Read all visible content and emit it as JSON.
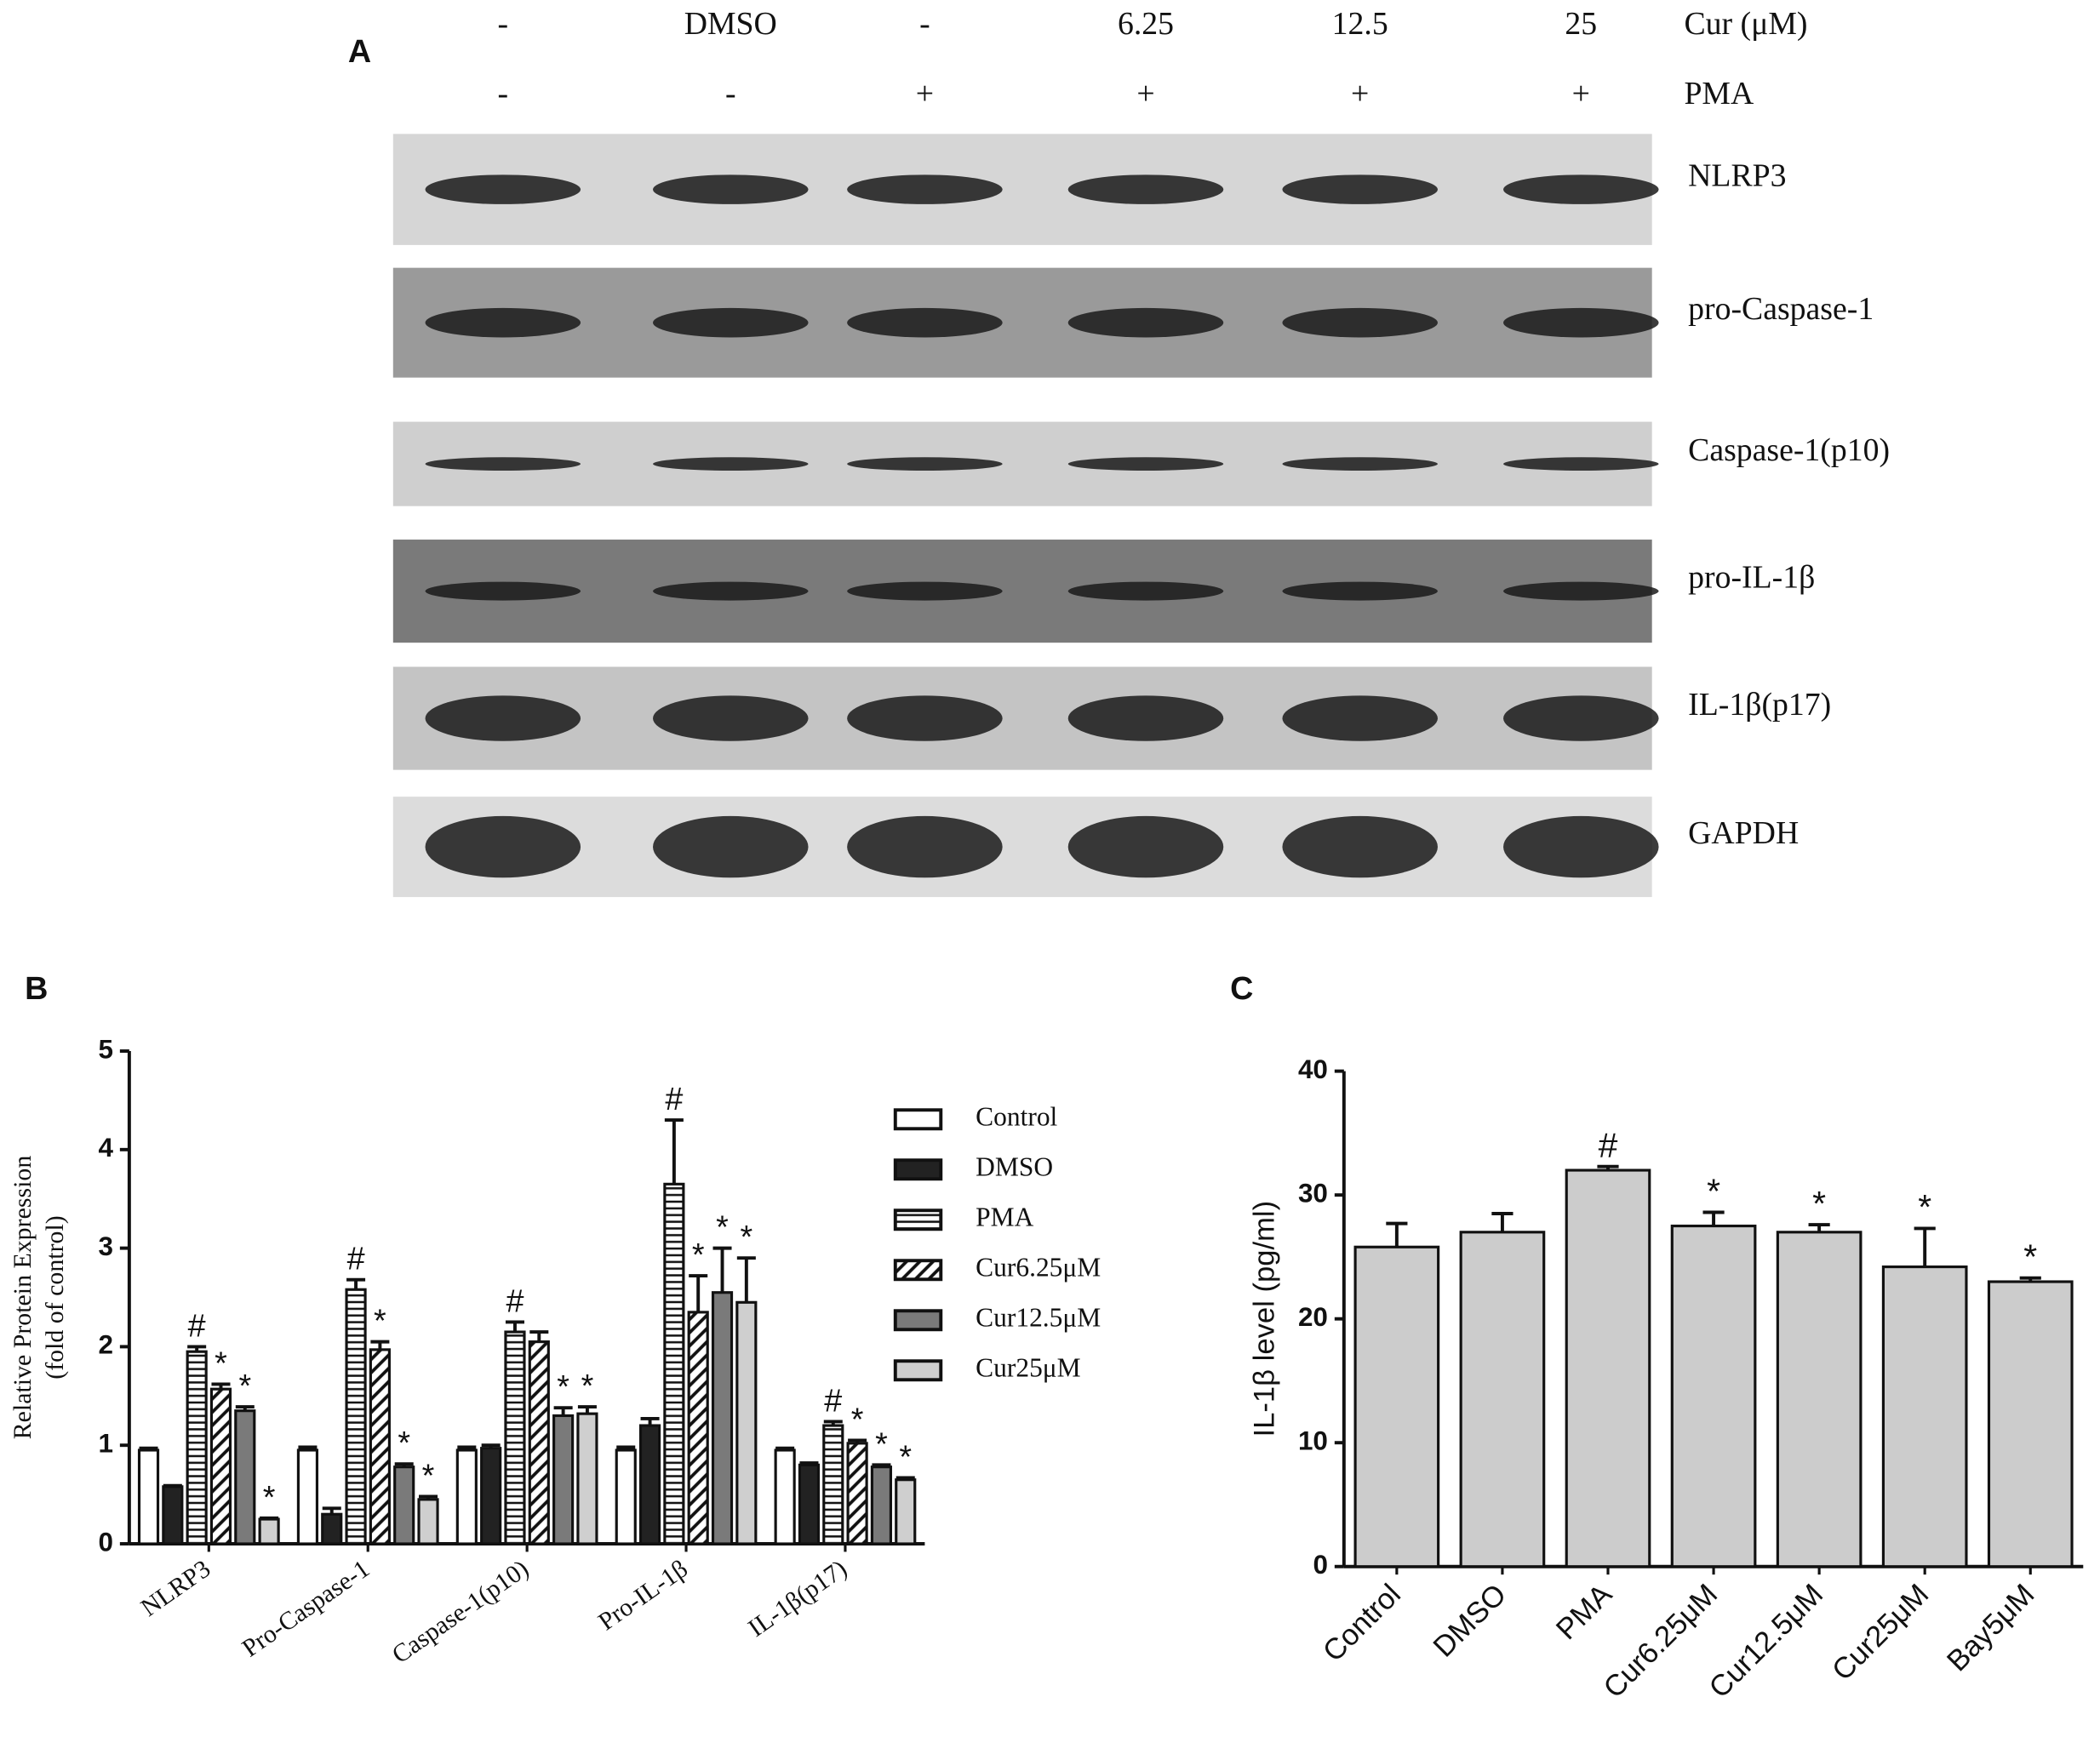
{
  "blot": {
    "panel_label": "A",
    "treatment_rows": [
      {
        "name": "Cur (μM)",
        "lanes": [
          "-",
          "DMSO",
          "-",
          "6.25",
          "12.5",
          "25"
        ]
      },
      {
        "name": "PMA",
        "lanes": [
          "-",
          "-",
          "+",
          "+",
          "+",
          "+"
        ]
      }
    ],
    "proteins": [
      "NLRP3",
      "pro-Caspase-1",
      "Caspase-1(p10)",
      "pro-IL-1β",
      "IL-1β(p17)",
      "GAPDH"
    ]
  },
  "chart_data": [
    {
      "type": "bar",
      "panel_label": "B",
      "ylabel": [
        "Relative Protein Expression",
        "(fold of control)"
      ],
      "categories": [
        "NLRP3",
        "Pro-Caspase-1",
        "Caspase-1(p10)",
        "Pro-IL-1β",
        "IL-1β(p17)"
      ],
      "ylim": [
        0,
        5
      ],
      "yticks": [
        0,
        1,
        2,
        3,
        4,
        5
      ],
      "grid": false,
      "legend": "right",
      "series": [
        {
          "name": "Control",
          "color": "#ffffff",
          "hatch": null,
          "values": [
            0.95,
            0.95,
            0.95,
            0.95,
            0.95
          ],
          "errors": [
            0.02,
            0.03,
            0.03,
            0.03,
            0.02
          ],
          "significance": [
            null,
            null,
            null,
            null,
            null
          ]
        },
        {
          "name": "DMSO",
          "color": "#222222",
          "hatch": null,
          "values": [
            0.58,
            0.3,
            0.97,
            1.2,
            0.8
          ],
          "errors": [
            0.01,
            0.06,
            0.03,
            0.07,
            0.02
          ],
          "significance": [
            null,
            null,
            null,
            null,
            null
          ]
        },
        {
          "name": "PMA",
          "color": "#ffffff",
          "hatch": "horizontal",
          "values": [
            1.95,
            2.58,
            2.15,
            3.65,
            1.2
          ],
          "errors": [
            0.05,
            0.1,
            0.1,
            0.65,
            0.04
          ],
          "significance": [
            "#",
            "#",
            "#",
            "#",
            "#"
          ]
        },
        {
          "name": "Cur6.25μM",
          "color": "#ffffff",
          "hatch": "diagonal",
          "values": [
            1.57,
            1.97,
            2.05,
            2.35,
            1.02
          ],
          "errors": [
            0.05,
            0.08,
            0.1,
            0.37,
            0.03
          ],
          "significance": [
            "*",
            "*",
            null,
            "*",
            "*"
          ]
        },
        {
          "name": "Cur12.5μM",
          "color": "#7a7a7a",
          "hatch": null,
          "values": [
            1.35,
            0.78,
            1.3,
            2.55,
            0.78
          ],
          "errors": [
            0.04,
            0.03,
            0.08,
            0.45,
            0.02
          ],
          "significance": [
            "*",
            "*",
            "*",
            "*",
            "*"
          ]
        },
        {
          "name": "Cur25μM",
          "color": "#cfcfcf",
          "hatch": null,
          "values": [
            0.25,
            0.45,
            1.32,
            2.45,
            0.65
          ],
          "errors": [
            0.01,
            0.03,
            0.07,
            0.45,
            0.02
          ],
          "significance": [
            "*",
            "*",
            "*",
            "*",
            "*"
          ]
        }
      ]
    },
    {
      "type": "bar",
      "panel_label": "C",
      "ylabel": [
        "IL-1β  level (pg/ml)"
      ],
      "categories": [
        "Control",
        "DMSO",
        "PMA",
        "Cur6.25μM",
        "Cur12.5μM",
        "Cur25μM",
        "Bay5μM"
      ],
      "values": [
        25.8,
        27.0,
        32.0,
        27.5,
        27.0,
        24.2,
        23.0
      ],
      "errors": [
        1.9,
        1.5,
        0.3,
        1.1,
        0.6,
        3.1,
        0.3
      ],
      "significance": [
        null,
        null,
        "#",
        "*",
        "*",
        "*",
        "*"
      ],
      "color": "#cccccc",
      "ylim": [
        0,
        40
      ],
      "yticks": [
        0,
        10,
        20,
        30,
        40
      ],
      "grid": false
    }
  ]
}
